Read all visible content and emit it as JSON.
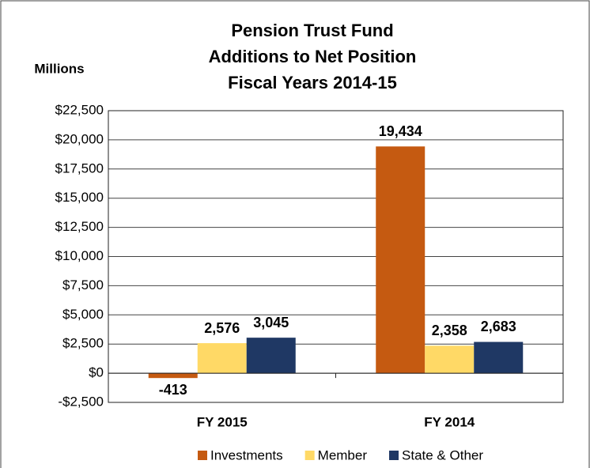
{
  "chart_data": {
    "type": "bar",
    "title": [
      "Pension Trust Fund",
      "Additions to Net Position",
      "Fiscal Years 2014-15"
    ],
    "y_axis_label": "Millions",
    "categories": [
      "FY 2015",
      "FY 2014"
    ],
    "series": [
      {
        "name": "Investments",
        "color": "#c55a11",
        "values": [
          -413,
          19434
        ],
        "value_labels": [
          "-413",
          "19,434"
        ]
      },
      {
        "name": "Member",
        "color": "#ffd966",
        "values": [
          2576,
          2358
        ],
        "value_labels": [
          "2,576",
          "2,358"
        ]
      },
      {
        "name": "State & Other",
        "color": "#1f3864",
        "values": [
          3045,
          2683
        ],
        "value_labels": [
          "3,045",
          "2,683"
        ]
      }
    ],
    "ylim": [
      -2500,
      22500
    ],
    "yticks": [
      {
        "value": -2500,
        "label": "-$2,500"
      },
      {
        "value": 0,
        "label": "$0"
      },
      {
        "value": 2500,
        "label": "$2,500"
      },
      {
        "value": 5000,
        "label": "$5,000"
      },
      {
        "value": 7500,
        "label": "$7,500"
      },
      {
        "value": 10000,
        "label": "$10,000"
      },
      {
        "value": 12500,
        "label": "$12,500"
      },
      {
        "value": 15000,
        "label": "$15,000"
      },
      {
        "value": 17500,
        "label": "$17,500"
      },
      {
        "value": 20000,
        "label": "$20,000"
      },
      {
        "value": 22500,
        "label": "$22,500"
      }
    ],
    "grid": true,
    "legend": "bottom"
  }
}
